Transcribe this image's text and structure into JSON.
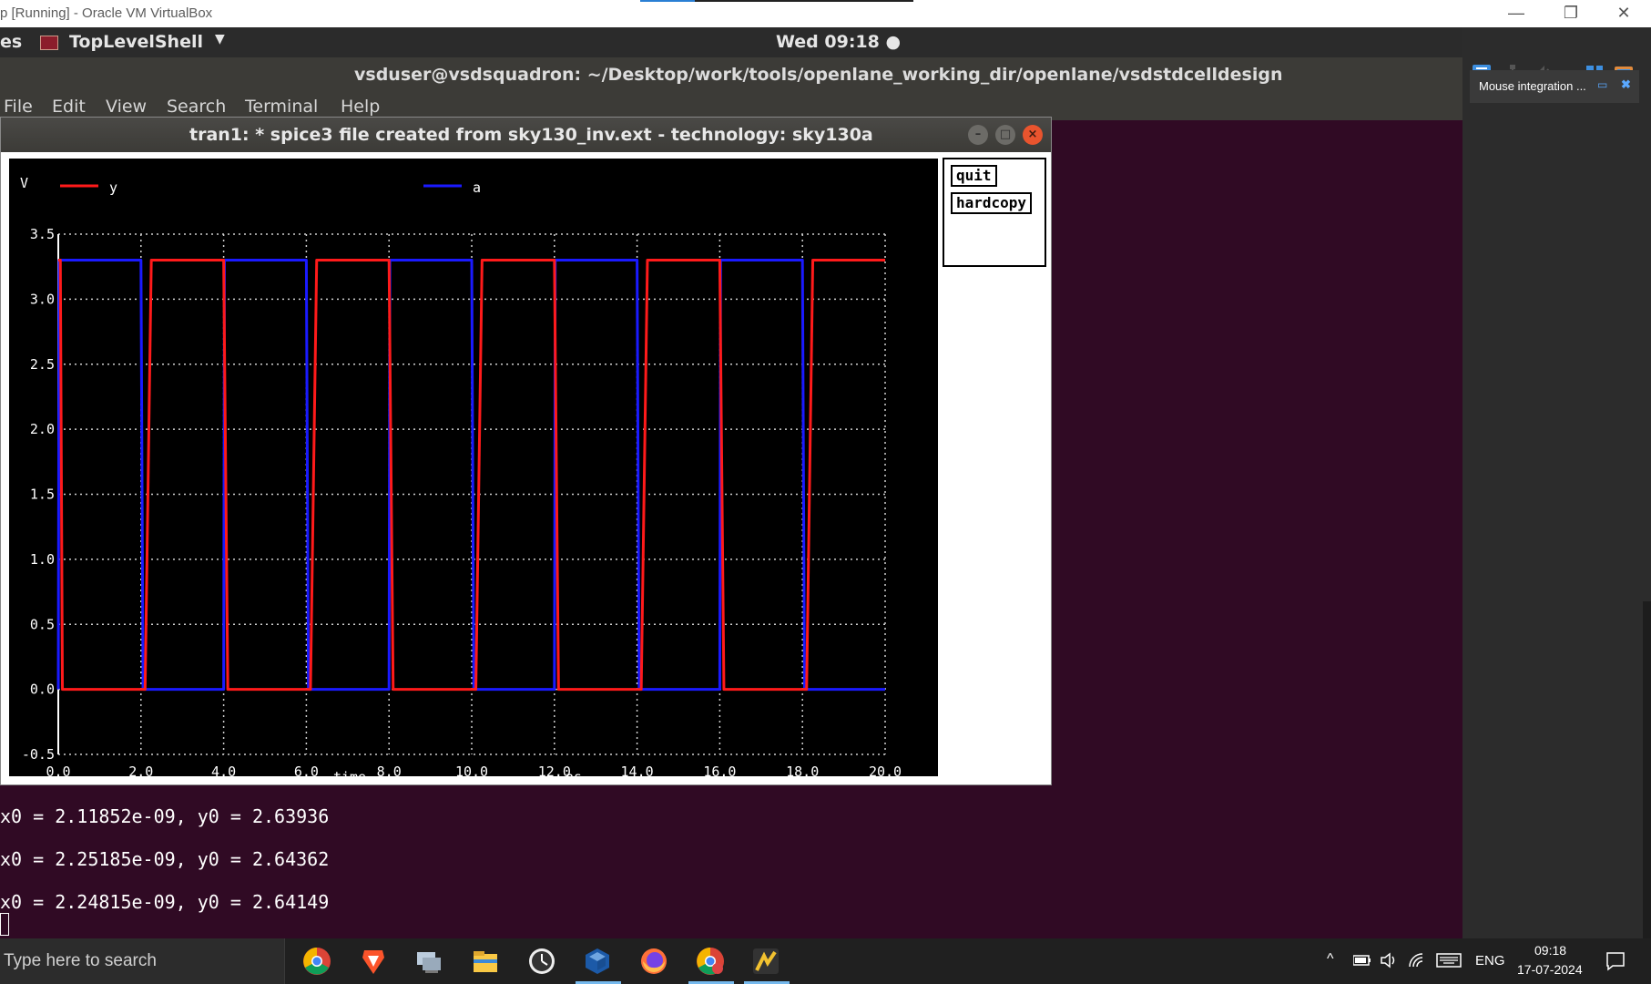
{
  "host": {
    "title": "p [Running] - Oracle VM VirtualBox",
    "min": "—",
    "restore": "❐",
    "close": "✕"
  },
  "gnome": {
    "activities": "es",
    "app_name": "TopLevelShell",
    "caret": "▼",
    "clock": "Wed 09:18 ●"
  },
  "terminal": {
    "title": "vsduser@vsdsquadron: ~/Desktop/work/tools/openlane_working_dir/openlane/vsdstdcelldesign",
    "menu": [
      "File",
      "Edit",
      "View",
      "Search",
      "Terminal",
      "Help"
    ],
    "lines": [
      "x0 = 2.11852e-09, y0 = 2.63936",
      "x0 = 2.25185e-09, y0 = 2.64362",
      "x0 = 2.24815e-09, y0 = 2.64149"
    ]
  },
  "plot_window": {
    "title": "tran1: * spice3 file created from sky130_inv.ext - technology: sky130a",
    "buttons": {
      "quit": "quit",
      "hardcopy": "hardcopy"
    },
    "win_min": "–",
    "win_max": "□",
    "win_close": "×"
  },
  "chart_data": {
    "type": "line",
    "ylabel": "V",
    "xlabel": "time",
    "xunit": "ns",
    "xlim": [
      0,
      20
    ],
    "ylim": [
      -0.5,
      3.5
    ],
    "x_ticks": [
      "0.0",
      "2.0",
      "4.0",
      "6.0",
      "8.0",
      "10.0",
      "12.0",
      "14.0",
      "16.0",
      "18.0",
      "20.0"
    ],
    "y_ticks": [
      "-0.5",
      "0.0",
      "0.5",
      "1.0",
      "1.5",
      "2.0",
      "2.5",
      "3.0",
      "3.5"
    ],
    "series": [
      {
        "name": "y",
        "color": "#ff1a1a",
        "x": [
          0,
          0.05,
          0.1,
          2.1,
          2.25,
          4.0,
          4.1,
          6.1,
          6.25,
          8.0,
          8.1,
          10.1,
          10.25,
          12.0,
          12.1,
          14.1,
          14.25,
          16.0,
          16.1,
          18.1,
          18.25,
          20.0
        ],
        "y": [
          3.3,
          3.3,
          0.0,
          0.0,
          3.3,
          3.3,
          0.0,
          0.0,
          3.3,
          3.3,
          0.0,
          0.0,
          3.3,
          3.3,
          0.0,
          0.0,
          3.3,
          3.3,
          0.0,
          0.0,
          3.3,
          3.3
        ]
      },
      {
        "name": "a",
        "color": "#1a1aff",
        "x": [
          0,
          0.02,
          2.0,
          2.05,
          4.0,
          4.02,
          6.0,
          6.05,
          8.0,
          8.02,
          10.0,
          10.05,
          12.0,
          12.02,
          14.0,
          14.05,
          16.0,
          16.02,
          18.0,
          18.05,
          20.0
        ],
        "y": [
          0.0,
          3.3,
          3.3,
          0.0,
          0.0,
          3.3,
          3.3,
          0.0,
          0.0,
          3.3,
          3.3,
          0.0,
          0.0,
          3.3,
          3.3,
          0.0,
          0.0,
          3.3,
          3.3,
          0.0,
          0.0
        ]
      }
    ]
  },
  "vbox_panel": {
    "notice": "Mouse integration ...",
    "notice_icon_1": "▭",
    "notice_icon_2": "✖"
  },
  "taskbar": {
    "search_placeholder": "Type here to search",
    "apps": [
      "chrome-icon",
      "brave-icon",
      "network-icon",
      "file-explorer-icon",
      "clock-app-icon",
      "virtualbox-icon",
      "firefox-icon",
      "chrome-profile-icon",
      "sketch-app-icon"
    ],
    "tray": {
      "lang": "ENG",
      "time": "09:18",
      "date": "17-07-2024",
      "chevron": "^"
    }
  }
}
